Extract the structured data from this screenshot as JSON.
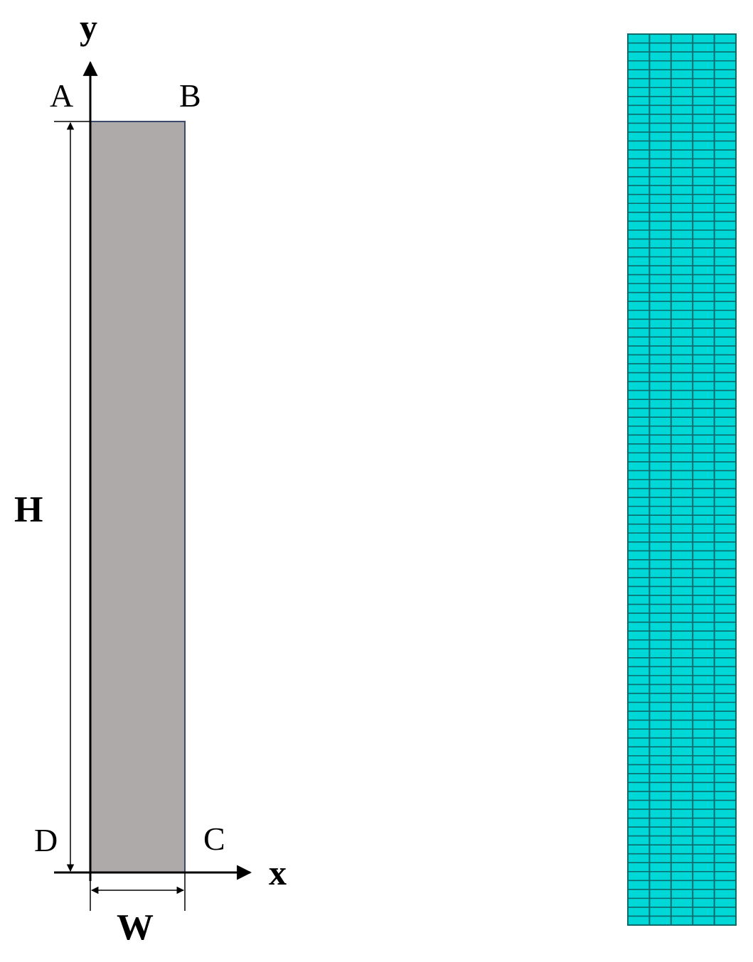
{
  "geometry_panel": {
    "axes": {
      "x_label": "x",
      "y_label": "y"
    },
    "corners": {
      "a": "A",
      "b": "B",
      "c": "C",
      "d": "D"
    },
    "dimensions": {
      "height_label": "H",
      "width_label": "W"
    },
    "colors": {
      "domain_fill": "#aeaaa9",
      "domain_edge_right": "#3c4a6b",
      "lines": "#000000"
    }
  },
  "mesh_panel": {
    "columns": 5,
    "rows": 100,
    "colors": {
      "cell_fill": "#00d8d8",
      "grid_lines": "#0a6a6c",
      "border": "#0a6a6c"
    }
  }
}
